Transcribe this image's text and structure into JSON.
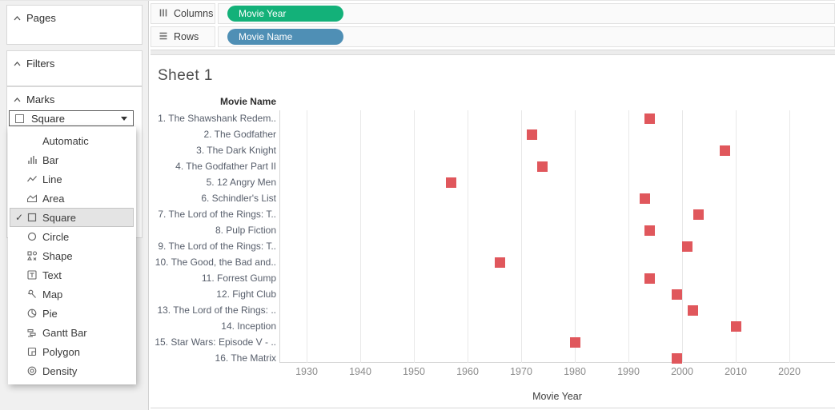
{
  "sidebar": {
    "pages": {
      "label": "Pages"
    },
    "filters": {
      "label": "Filters"
    },
    "marks": {
      "label": "Marks",
      "selected_type": "Square",
      "menu": {
        "items": [
          {
            "label": "Automatic",
            "selected": false
          },
          {
            "label": "Bar",
            "selected": false
          },
          {
            "label": "Line",
            "selected": false
          },
          {
            "label": "Area",
            "selected": false
          },
          {
            "label": "Square",
            "selected": true
          },
          {
            "label": "Circle",
            "selected": false
          },
          {
            "label": "Shape",
            "selected": false
          },
          {
            "label": "Text",
            "selected": false
          },
          {
            "label": "Map",
            "selected": false
          },
          {
            "label": "Pie",
            "selected": false
          },
          {
            "label": "Gantt Bar",
            "selected": false
          },
          {
            "label": "Polygon",
            "selected": false
          },
          {
            "label": "Density",
            "selected": false
          }
        ],
        "check_glyph": "✓"
      }
    }
  },
  "shelves": {
    "columns": {
      "label": "Columns",
      "pill": {
        "text": "Movie Year",
        "color": "#13b179"
      }
    },
    "rows": {
      "label": "Rows",
      "pill": {
        "text": "Movie Name",
        "color": "#4f8fb5"
      }
    }
  },
  "sheet": {
    "title": "Sheet 1"
  },
  "chart_data": {
    "type": "scatter",
    "mark_shape": "square",
    "mark_color": "#e0575c",
    "title": "Sheet 1",
    "row_header": "Movie Name",
    "xlabel": "Movie Year",
    "x_ticks": [
      1930,
      1940,
      1950,
      1960,
      1970,
      1980,
      1990,
      2000,
      2010,
      2020
    ],
    "x_range_approx": [
      1925,
      2028
    ],
    "grid": "vertical-only",
    "rows": [
      {
        "label": "1. The Shawshank Redem..",
        "year": 1994
      },
      {
        "label": "2. The Godfather",
        "year": 1972
      },
      {
        "label": "3. The Dark Knight",
        "year": 2008
      },
      {
        "label": "4. The Godfather Part II",
        "year": 1974
      },
      {
        "label": "5. 12 Angry Men",
        "year": 1957
      },
      {
        "label": "6. Schindler's List",
        "year": 1993
      },
      {
        "label": "7. The Lord of the Rings: T..",
        "year": 2003
      },
      {
        "label": "8. Pulp Fiction",
        "year": 1994
      },
      {
        "label": "9. The Lord of the Rings: T..",
        "year": 2001
      },
      {
        "label": "10. The Good, the Bad and..",
        "year": 1966
      },
      {
        "label": "11. Forrest Gump",
        "year": 1994
      },
      {
        "label": "12. Fight Club",
        "year": 1999
      },
      {
        "label": "13. The Lord of the Rings: ..",
        "year": 2002
      },
      {
        "label": "14. Inception",
        "year": 2010
      },
      {
        "label": "15. Star Wars: Episode V - ..",
        "year": 1980
      },
      {
        "label": "16. The Matrix",
        "year": 1999
      }
    ]
  }
}
